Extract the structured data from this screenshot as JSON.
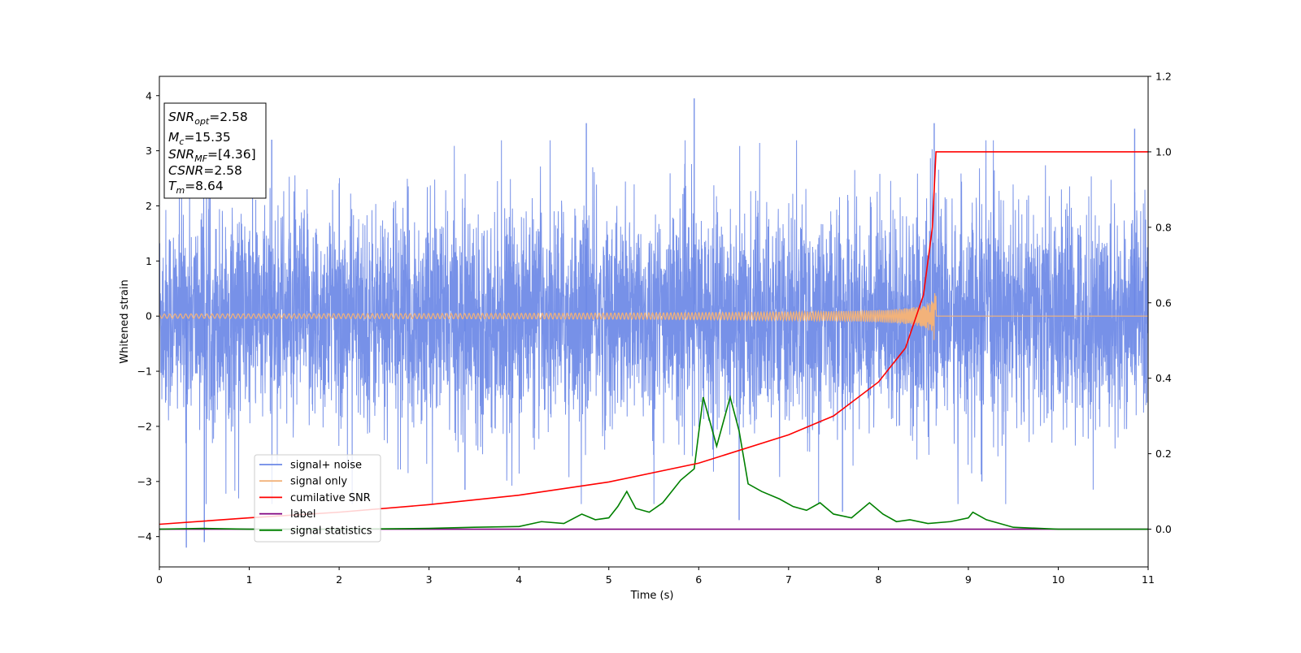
{
  "chart_data": {
    "type": "line",
    "xlabel": "Time (s)",
    "ylabel": "Whitened strain",
    "xlim": [
      0,
      11
    ],
    "ylim_left": [
      -4.55,
      4.35
    ],
    "ylim_right": [
      -0.1,
      1.2
    ],
    "x_ticks": [
      "0",
      "1",
      "2",
      "3",
      "4",
      "5",
      "6",
      "7",
      "8",
      "9",
      "10",
      "11"
    ],
    "y_ticks_left": [
      "4",
      "3",
      "2",
      "1",
      "0",
      "−1",
      "−2",
      "−3",
      "−4"
    ],
    "y_ticks_right": [
      "1.2",
      "1.0",
      "0.8",
      "0.6",
      "0.4",
      "0.2",
      "0.0"
    ],
    "grid": false,
    "legend_position": "lower-left",
    "series": [
      {
        "name": "signal+ noise",
        "axis": "left",
        "color": "#6b88e6",
        "description": "whitened Gaussian-like noise plus signal, roughly within -2.5 to 2.5 with spikes up to about 4",
        "envelope": {
          "typical_max": 2.2,
          "typical_min": -2.2,
          "peak_max": 3.95,
          "peak_min": -4.2
        },
        "highlight_spikes": [
          {
            "x": 0.3,
            "y": -4.2
          },
          {
            "x": 0.5,
            "y": -4.1
          },
          {
            "x": 1.25,
            "y": 3.2
          },
          {
            "x": 3.4,
            "y": -3.15
          },
          {
            "x": 4.75,
            "y": 3.5
          },
          {
            "x": 5.95,
            "y": 3.95
          },
          {
            "x": 6.45,
            "y": -3.7
          },
          {
            "x": 7.6,
            "y": -3.55
          },
          {
            "x": 8.62,
            "y": 3.5
          },
          {
            "x": 9.15,
            "y": -3.0
          },
          {
            "x": 10.85,
            "y": 3.4
          }
        ]
      },
      {
        "name": "signal only",
        "axis": "left",
        "color": "#f2b27a",
        "description": "chirp signal growing in amplitude until merger near t=8.64 s, then zero",
        "merger_time": 8.64,
        "peak_amplitude": 0.45
      },
      {
        "name": "cumilative SNR",
        "axis": "right",
        "color": "#ff0000",
        "points": [
          [
            0,
            0.013
          ],
          [
            1,
            0.03
          ],
          [
            2,
            0.045
          ],
          [
            3,
            0.065
          ],
          [
            4,
            0.09
          ],
          [
            5,
            0.125
          ],
          [
            6,
            0.175
          ],
          [
            7,
            0.25
          ],
          [
            7.5,
            0.3
          ],
          [
            8,
            0.39
          ],
          [
            8.3,
            0.48
          ],
          [
            8.5,
            0.62
          ],
          [
            8.6,
            0.8
          ],
          [
            8.64,
            1.0
          ],
          [
            11,
            1.0
          ]
        ]
      },
      {
        "name": "label",
        "axis": "right",
        "color": "#800080",
        "points": [
          [
            0,
            0.0
          ],
          [
            11,
            0.0
          ]
        ]
      },
      {
        "name": "signal statistics",
        "axis": "right",
        "color": "#008000",
        "points": [
          [
            0,
            0.0
          ],
          [
            0.5,
            0.002
          ],
          [
            1,
            0.0
          ],
          [
            2,
            0.0
          ],
          [
            3,
            0.002
          ],
          [
            3.5,
            0.005
          ],
          [
            4,
            0.007
          ],
          [
            4.25,
            0.02
          ],
          [
            4.5,
            0.015
          ],
          [
            4.7,
            0.04
          ],
          [
            4.85,
            0.025
          ],
          [
            5,
            0.03
          ],
          [
            5.1,
            0.06
          ],
          [
            5.2,
            0.1
          ],
          [
            5.3,
            0.055
          ],
          [
            5.45,
            0.045
          ],
          [
            5.6,
            0.07
          ],
          [
            5.8,
            0.13
          ],
          [
            5.95,
            0.16
          ],
          [
            6.05,
            0.35
          ],
          [
            6.2,
            0.22
          ],
          [
            6.35,
            0.35
          ],
          [
            6.45,
            0.26
          ],
          [
            6.55,
            0.12
          ],
          [
            6.7,
            0.1
          ],
          [
            6.9,
            0.08
          ],
          [
            7.05,
            0.06
          ],
          [
            7.2,
            0.05
          ],
          [
            7.35,
            0.07
          ],
          [
            7.5,
            0.04
          ],
          [
            7.7,
            0.03
          ],
          [
            7.9,
            0.07
          ],
          [
            8.05,
            0.04
          ],
          [
            8.2,
            0.02
          ],
          [
            8.35,
            0.025
          ],
          [
            8.55,
            0.015
          ],
          [
            8.8,
            0.02
          ],
          [
            9.0,
            0.03
          ],
          [
            9.05,
            0.045
          ],
          [
            9.2,
            0.025
          ],
          [
            9.5,
            0.005
          ],
          [
            10,
            0.0
          ],
          [
            11,
            0.0
          ]
        ]
      }
    ],
    "info_box": {
      "lines": [
        {
          "sym": "SNR",
          "sub": "opt",
          "val": "=2.58"
        },
        {
          "sym": "M",
          "sub": "c",
          "val": "=15.35"
        },
        {
          "sym": "SNR",
          "sub": "MF",
          "val": "=[4.36]"
        },
        {
          "sym": "CSNR",
          "sub": "",
          "val": "=2.58"
        },
        {
          "sym": "T",
          "sub": "m",
          "val": "=8.64"
        }
      ]
    }
  }
}
